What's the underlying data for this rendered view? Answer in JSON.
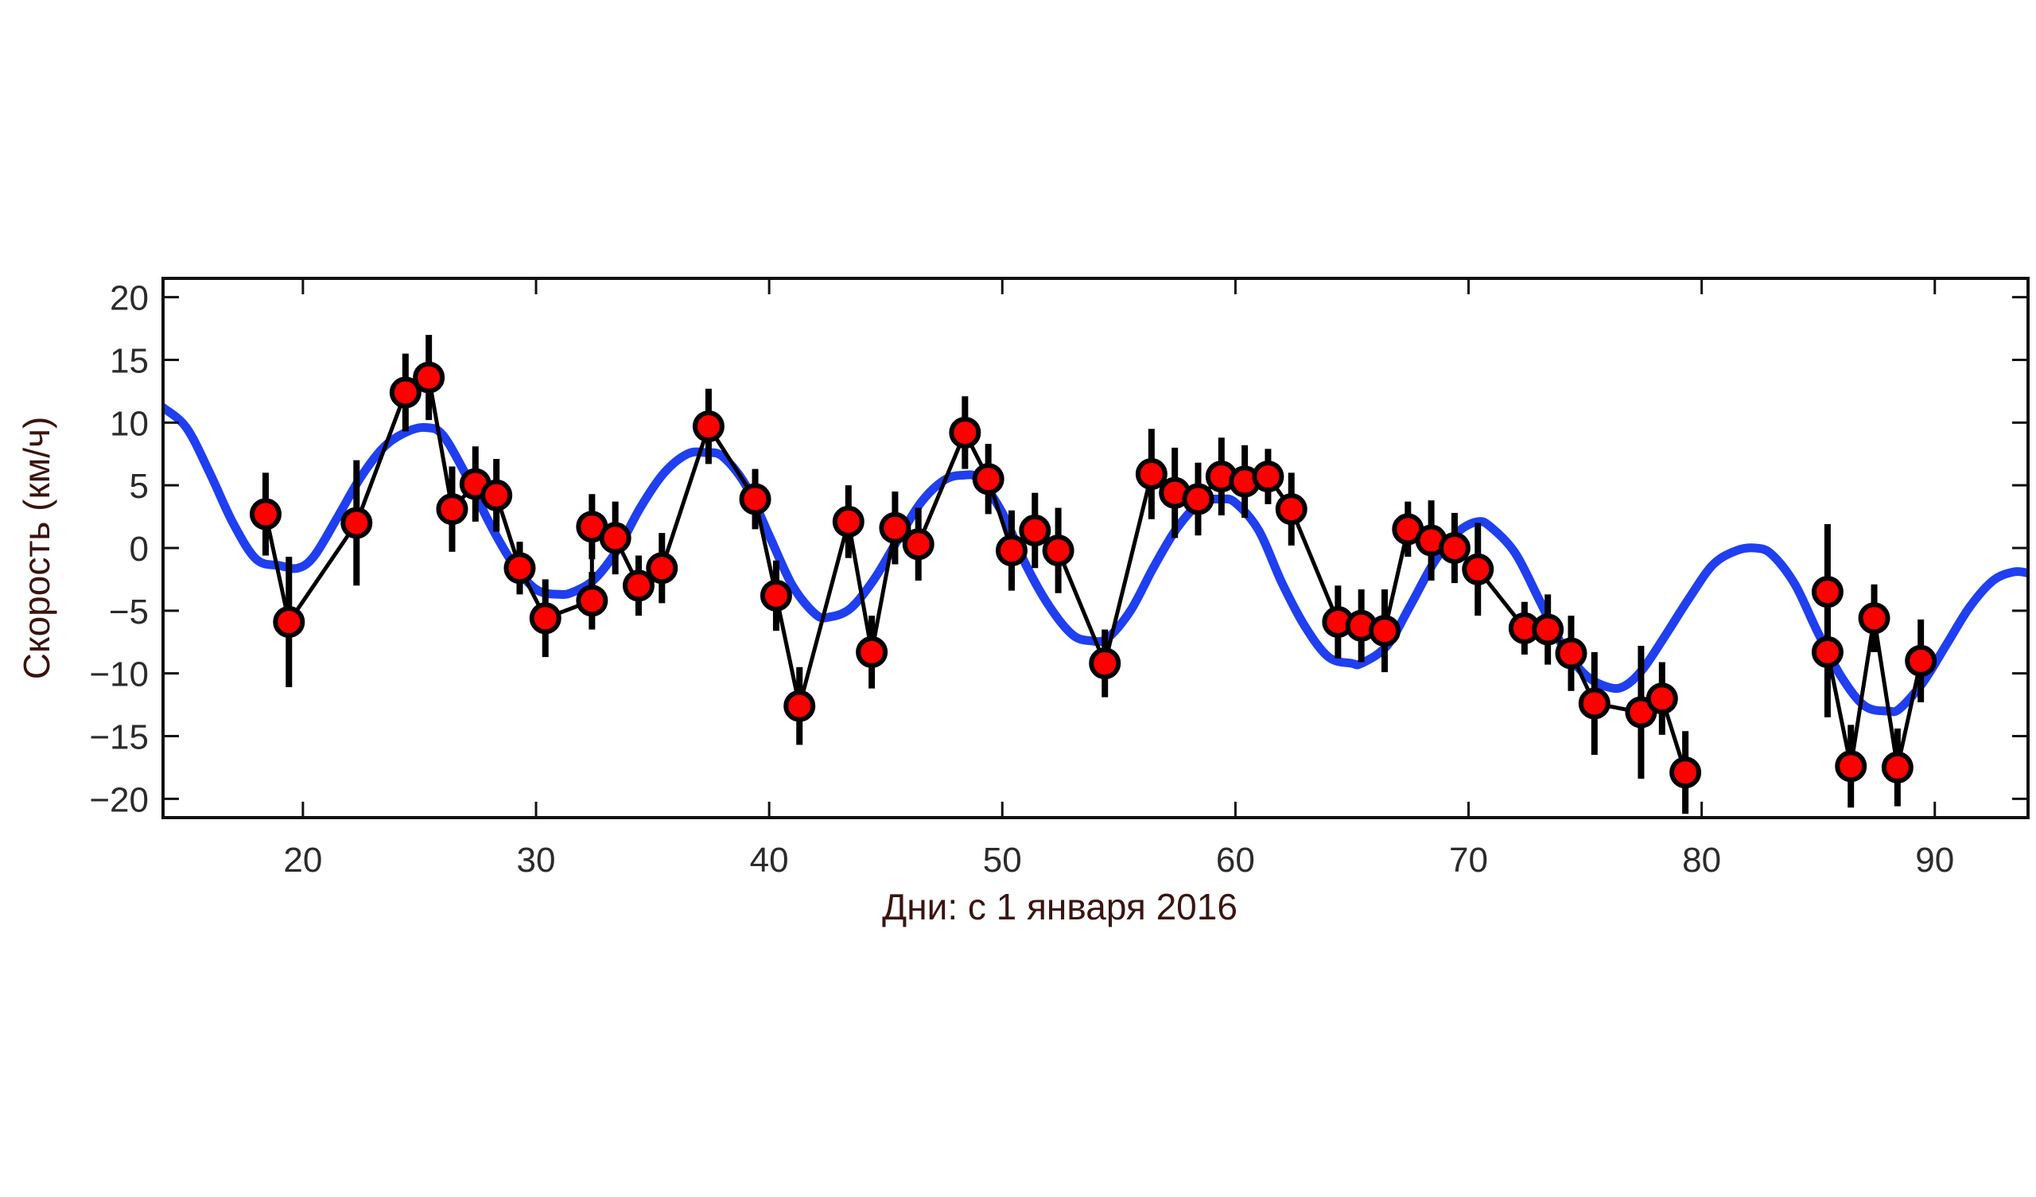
{
  "chart_data": {
    "type": "line",
    "title": "",
    "xlabel": "Дни: с 1 января 2016",
    "ylabel": "Скорость (км/ч)",
    "xlim": [
      14,
      94
    ],
    "ylim": [
      -21.5,
      21.5
    ],
    "x_ticks": [
      20,
      30,
      40,
      50,
      60,
      70,
      80,
      90
    ],
    "y_ticks": [
      20,
      15,
      10,
      5,
      0,
      -5,
      -10,
      -15,
      -20
    ],
    "y_tick_labels": [
      "20",
      "15",
      "10",
      "5",
      "0",
      "−5",
      "−10",
      "−15",
      "−20"
    ],
    "grid": false,
    "legend": "none",
    "colors": {
      "model": "#1f3ff0",
      "observed_line": "#000000",
      "marker_fill": "#ff0000",
      "marker_edge": "#000000",
      "error_bar": "#000000",
      "axis_title": "#3a1410"
    },
    "series": [
      {
        "type": "scatter_errorbar_connected",
        "points": [
          {
            "x": 18.4,
            "y": 2.7,
            "err": 3.3
          },
          {
            "x": 19.4,
            "y": -5.9,
            "err": 5.2
          },
          {
            "x": 22.3,
            "y": 2.0,
            "err": 5.0
          },
          {
            "x": 24.4,
            "y": 12.4,
            "err": 3.1
          },
          {
            "x": 25.4,
            "y": 13.6,
            "err": 3.4
          },
          {
            "x": 26.4,
            "y": 3.1,
            "err": 3.4
          },
          {
            "x": 27.4,
            "y": 5.1,
            "err": 3.0
          },
          {
            "x": 28.3,
            "y": 4.2,
            "err": 2.9
          },
          {
            "x": 29.3,
            "y": -1.6,
            "err": 2.1
          },
          {
            "x": 30.4,
            "y": -5.6,
            "err": 3.1
          },
          {
            "x": 32.4,
            "y": -4.2,
            "err": 2.3
          },
          {
            "x": 32.4,
            "y": 1.7,
            "err": 2.6
          },
          {
            "x": 33.4,
            "y": 0.8,
            "err": 2.9
          },
          {
            "x": 34.4,
            "y": -3.0,
            "err": 2.4
          },
          {
            "x": 35.4,
            "y": -1.6,
            "err": 2.8
          },
          {
            "x": 37.4,
            "y": 9.7,
            "err": 3.0
          },
          {
            "x": 39.4,
            "y": 3.9,
            "err": 2.4
          },
          {
            "x": 40.3,
            "y": -3.8,
            "err": 2.8
          },
          {
            "x": 41.3,
            "y": -12.6,
            "err": 3.1
          },
          {
            "x": 43.4,
            "y": 2.1,
            "err": 2.9
          },
          {
            "x": 44.4,
            "y": -8.3,
            "err": 2.9
          },
          {
            "x": 45.4,
            "y": 1.6,
            "err": 2.9
          },
          {
            "x": 46.4,
            "y": 0.3,
            "err": 2.9
          },
          {
            "x": 48.4,
            "y": 9.2,
            "err": 2.9
          },
          {
            "x": 49.4,
            "y": 5.5,
            "err": 2.8
          },
          {
            "x": 50.4,
            "y": -0.2,
            "err": 3.2
          },
          {
            "x": 51.4,
            "y": 1.4,
            "err": 3.0
          },
          {
            "x": 52.4,
            "y": -0.2,
            "err": 3.4
          },
          {
            "x": 54.4,
            "y": -9.2,
            "err": 2.7
          },
          {
            "x": 56.4,
            "y": 5.9,
            "err": 3.6
          },
          {
            "x": 57.4,
            "y": 4.4,
            "err": 3.6
          },
          {
            "x": 58.4,
            "y": 3.9,
            "err": 2.9
          },
          {
            "x": 59.4,
            "y": 5.7,
            "err": 3.1
          },
          {
            "x": 60.4,
            "y": 5.3,
            "err": 2.9
          },
          {
            "x": 61.4,
            "y": 5.7,
            "err": 2.2
          },
          {
            "x": 62.4,
            "y": 3.1,
            "err": 2.9
          },
          {
            "x": 64.4,
            "y": -5.9,
            "err": 2.9
          },
          {
            "x": 65.4,
            "y": -6.2,
            "err": 2.9
          },
          {
            "x": 66.4,
            "y": -6.6,
            "err": 3.3
          },
          {
            "x": 67.4,
            "y": 1.5,
            "err": 2.2
          },
          {
            "x": 68.4,
            "y": 0.6,
            "err": 3.2
          },
          {
            "x": 69.4,
            "y": 0.0,
            "err": 2.8
          },
          {
            "x": 70.4,
            "y": -1.7,
            "err": 3.7
          },
          {
            "x": 72.4,
            "y": -6.4,
            "err": 2.1
          },
          {
            "x": 73.4,
            "y": -6.5,
            "err": 2.8
          },
          {
            "x": 74.4,
            "y": -8.4,
            "err": 3.0
          },
          {
            "x": 75.4,
            "y": -12.4,
            "err": 4.1
          },
          {
            "x": 77.4,
            "y": -13.1,
            "err": 5.3
          },
          {
            "x": 78.3,
            "y": -12.0,
            "err": 2.9
          },
          {
            "x": 79.3,
            "y": -17.9,
            "err": 3.3
          },
          {
            "x": 85.4,
            "y": -3.5,
            "err": 5.4
          },
          {
            "x": 85.4,
            "y": -8.3,
            "err": 5.2
          },
          {
            "x": 86.4,
            "y": -17.4,
            "err": 3.3
          },
          {
            "x": 87.4,
            "y": -5.6,
            "err": 2.7
          },
          {
            "x": 88.4,
            "y": -17.5,
            "err": 3.1
          },
          {
            "x": 89.4,
            "y": -9.0,
            "err": 3.3
          }
        ],
        "path_order_x": [
          18.4,
          19.4,
          22.3,
          24.4,
          25.4,
          26.4,
          27.4,
          28.3,
          29.3,
          30.4,
          32.4,
          32.4,
          33.4,
          34.4,
          35.4,
          37.4,
          39.4,
          40.3,
          41.3,
          43.4,
          44.4,
          45.4,
          46.4,
          48.4,
          49.4,
          50.4,
          51.4,
          52.4,
          54.4,
          56.4,
          57.4,
          58.4,
          59.4,
          60.4,
          61.4,
          62.4,
          64.4,
          65.4,
          66.4,
          67.4,
          68.4,
          69.4,
          70.4,
          72.4,
          73.4,
          74.4,
          75.4,
          77.4,
          78.3,
          79.3
        ],
        "path_order_y": [
          2.7,
          -5.9,
          2.0,
          12.4,
          13.6,
          3.1,
          5.1,
          4.2,
          -1.6,
          -5.6,
          -4.2,
          1.7,
          0.8,
          -3.0,
          -1.6,
          9.7,
          3.9,
          -3.8,
          -12.6,
          2.1,
          -8.3,
          1.6,
          0.3,
          9.2,
          5.5,
          -0.2,
          1.4,
          -0.2,
          -9.2,
          5.9,
          4.4,
          3.9,
          5.7,
          5.3,
          5.7,
          3.1,
          -5.9,
          -6.2,
          -6.6,
          1.5,
          0.6,
          0.0,
          -1.7,
          -6.4,
          -6.5,
          -8.4,
          -12.4,
          -13.1,
          -12.0,
          -17.9
        ],
        "path2_x": [
          85.4,
          85.4,
          86.4,
          87.4,
          88.4,
          89.4
        ],
        "path2_y": [
          -3.5,
          -8.3,
          -17.4,
          -5.6,
          -17.5,
          -9.0
        ]
      },
      {
        "type": "model_curve",
        "x": [
          14,
          15,
          16,
          17,
          18,
          19,
          19.8,
          20.5,
          21.5,
          22.5,
          23.5,
          24.5,
          25.3,
          26,
          27,
          28,
          29,
          30,
          31,
          31.6,
          32.5,
          33.5,
          34.5,
          35.5,
          36.5,
          37.3,
          38,
          39,
          40,
          41,
          42,
          42.6,
          43.5,
          44.5,
          45.5,
          46.5,
          47.5,
          48.3,
          49,
          50,
          51,
          52,
          53,
          53.8,
          54.5,
          55.5,
          56.5,
          57.5,
          58.5,
          59.4,
          60,
          61,
          62,
          63,
          64,
          65,
          65.4,
          66.5,
          67.5,
          68.5,
          69.5,
          70.4,
          71,
          72,
          73,
          74,
          75,
          76,
          76.7,
          77.5,
          78.5,
          79.5,
          80.5,
          81.5,
          82.3,
          83,
          84,
          85,
          86,
          87,
          88,
          88.5,
          89.5,
          90.5,
          91.5,
          92.5,
          93.4,
          94
        ],
        "y": [
          11.2,
          9.6,
          6.0,
          2.0,
          -0.9,
          -1.4,
          -1.6,
          -0.6,
          2.5,
          5.7,
          8.1,
          9.3,
          9.6,
          9.0,
          5.8,
          2.0,
          -1.2,
          -3.3,
          -3.7,
          -3.5,
          -2.5,
          -0.1,
          3.3,
          6.0,
          7.5,
          7.6,
          7.3,
          5.0,
          1.0,
          -3.0,
          -5.3,
          -5.5,
          -4.8,
          -2.5,
          0.6,
          3.6,
          5.4,
          5.8,
          5.5,
          2.8,
          -1.3,
          -4.6,
          -6.9,
          -7.4,
          -7.2,
          -5.0,
          -1.5,
          1.6,
          3.6,
          3.9,
          3.6,
          1.4,
          -2.8,
          -6.3,
          -8.7,
          -9.2,
          -9.2,
          -7.8,
          -4.6,
          -1.2,
          1.2,
          2.1,
          1.6,
          -0.4,
          -4.0,
          -7.7,
          -10.1,
          -11.1,
          -11.0,
          -9.6,
          -6.8,
          -3.9,
          -1.3,
          -0.2,
          0.0,
          -0.5,
          -2.9,
          -6.8,
          -10.3,
          -12.6,
          -13.0,
          -12.8,
          -10.7,
          -7.7,
          -4.7,
          -2.6,
          -1.9,
          -2.0
        ]
      }
    ]
  }
}
